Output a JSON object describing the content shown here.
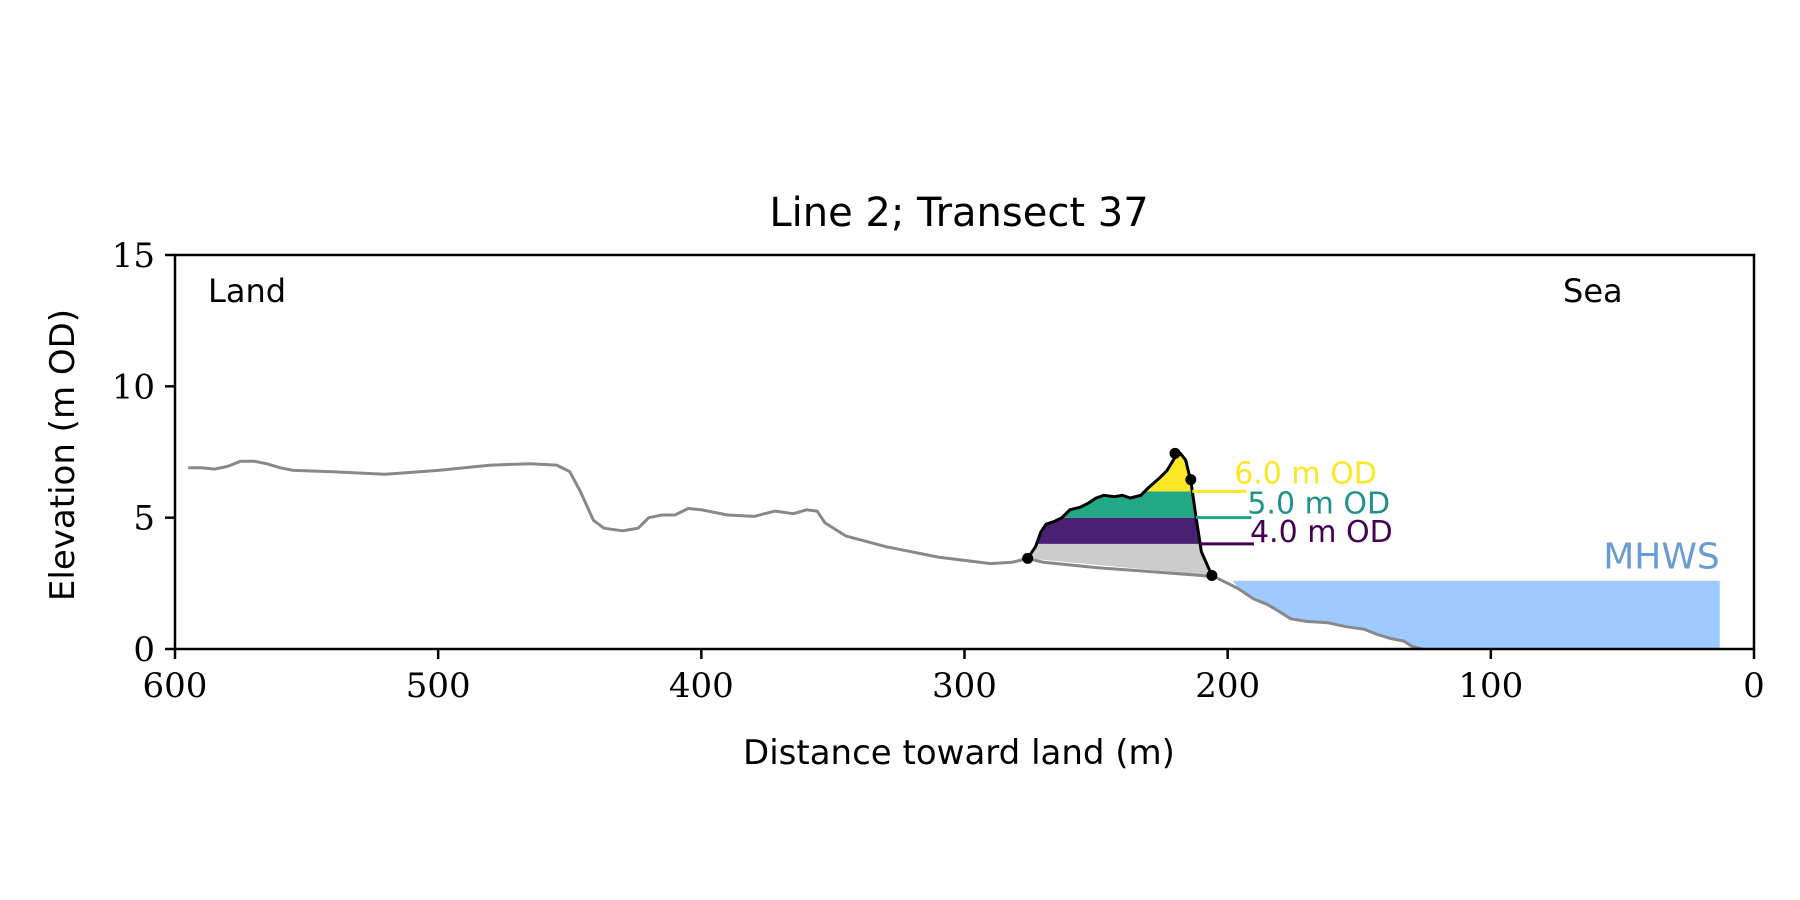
{
  "chart_data": {
    "type": "area",
    "title": "Line 2; Transect 37",
    "xlabel": "Distance toward land (m)",
    "ylabel": "Elevation (m OD)",
    "xlim": [
      600,
      0
    ],
    "ylim": [
      0,
      15
    ],
    "x_ticks": [
      600,
      500,
      400,
      300,
      200,
      100,
      0
    ],
    "y_ticks": [
      0,
      5,
      10,
      15
    ],
    "grid": false,
    "annotations": {
      "land": "Land",
      "sea": "Sea",
      "mhws": "MHWS"
    },
    "mhws": {
      "elevation": 2.6,
      "x_from": 198,
      "x_to": 13,
      "color": "#9ecbff",
      "label_color": "#6a9bd1"
    },
    "profile_color": "#888888",
    "profile": [
      [
        595,
        6.9
      ],
      [
        590,
        6.9
      ],
      [
        585,
        6.85
      ],
      [
        580,
        6.95
      ],
      [
        575,
        7.15
      ],
      [
        570,
        7.15
      ],
      [
        565,
        7.05
      ],
      [
        560,
        6.9
      ],
      [
        555,
        6.8
      ],
      [
        540,
        6.75
      ],
      [
        520,
        6.65
      ],
      [
        500,
        6.8
      ],
      [
        480,
        7.0
      ],
      [
        465,
        7.05
      ],
      [
        455,
        7.0
      ],
      [
        450,
        6.75
      ],
      [
        446,
        6.0
      ],
      [
        441,
        4.9
      ],
      [
        437,
        4.6
      ],
      [
        430,
        4.5
      ],
      [
        424,
        4.6
      ],
      [
        420,
        5.0
      ],
      [
        415,
        5.1
      ],
      [
        410,
        5.1
      ],
      [
        405,
        5.35
      ],
      [
        400,
        5.3
      ],
      [
        390,
        5.1
      ],
      [
        380,
        5.05
      ],
      [
        372,
        5.25
      ],
      [
        365,
        5.15
      ],
      [
        360,
        5.3
      ],
      [
        356,
        5.25
      ],
      [
        353,
        4.8
      ],
      [
        345,
        4.3
      ],
      [
        330,
        3.9
      ],
      [
        310,
        3.5
      ],
      [
        290,
        3.25
      ],
      [
        282,
        3.3
      ],
      [
        276,
        3.45
      ],
      [
        270,
        3.3
      ],
      [
        250,
        3.1
      ],
      [
        230,
        2.95
      ],
      [
        210,
        2.8
      ],
      [
        205,
        2.75
      ],
      [
        200,
        2.5
      ],
      [
        196,
        2.3
      ],
      [
        190,
        1.9
      ],
      [
        185,
        1.7
      ],
      [
        180,
        1.4
      ],
      [
        176,
        1.15
      ],
      [
        170,
        1.05
      ],
      [
        162,
        1.0
      ],
      [
        155,
        0.85
      ],
      [
        148,
        0.75
      ],
      [
        143,
        0.55
      ],
      [
        138,
        0.4
      ],
      [
        133,
        0.3
      ],
      [
        130,
        0.1
      ],
      [
        126,
        0.0
      ]
    ],
    "dune": {
      "outline": [
        [
          276,
          3.45
        ],
        [
          273,
          3.9
        ],
        [
          271,
          4.45
        ],
        [
          269,
          4.75
        ],
        [
          266,
          4.85
        ],
        [
          263,
          5.0
        ],
        [
          260,
          5.3
        ],
        [
          256,
          5.4
        ],
        [
          253,
          5.55
        ],
        [
          250,
          5.75
        ],
        [
          247,
          5.85
        ],
        [
          243,
          5.8
        ],
        [
          240,
          5.85
        ],
        [
          237,
          5.75
        ],
        [
          233,
          5.85
        ],
        [
          230,
          6.15
        ],
        [
          226,
          6.5
        ],
        [
          223,
          6.8
        ],
        [
          220,
          7.3
        ],
        [
          218,
          7.45
        ],
        [
          216,
          7.2
        ],
        [
          214,
          6.4
        ],
        [
          212,
          5.0
        ],
        [
          210,
          3.7
        ],
        [
          206,
          2.8
        ]
      ],
      "markers": [
        [
          276,
          3.45
        ],
        [
          220,
          7.45
        ],
        [
          214,
          6.45
        ],
        [
          206,
          2.8
        ]
      ],
      "base": {
        "from": [
          276,
          3.45
        ],
        "to": [
          206,
          2.8
        ],
        "color": "#cccccc"
      },
      "levels": [
        {
          "label": "6.0 m OD",
          "elevation": 6.0,
          "color": "#fde725",
          "line_end": 193
        },
        {
          "label": "5.0 m OD",
          "elevation": 5.0,
          "color": "#21a585",
          "line_end": 191
        },
        {
          "label": "4.0 m OD",
          "elevation": 4.0,
          "color": "#440154",
          "line_end": 190
        }
      ],
      "band_colors": {
        "3.45-4.0": "#cccccc",
        "4.0-5.0": "#482173",
        "5.0-6.0": "#22a884",
        "6.0-top": "#fde725"
      },
      "level_label_colors": {
        "6.0 m OD": "#fde725",
        "5.0 m OD": "#20918c",
        "4.0 m OD": "#440154"
      }
    }
  }
}
